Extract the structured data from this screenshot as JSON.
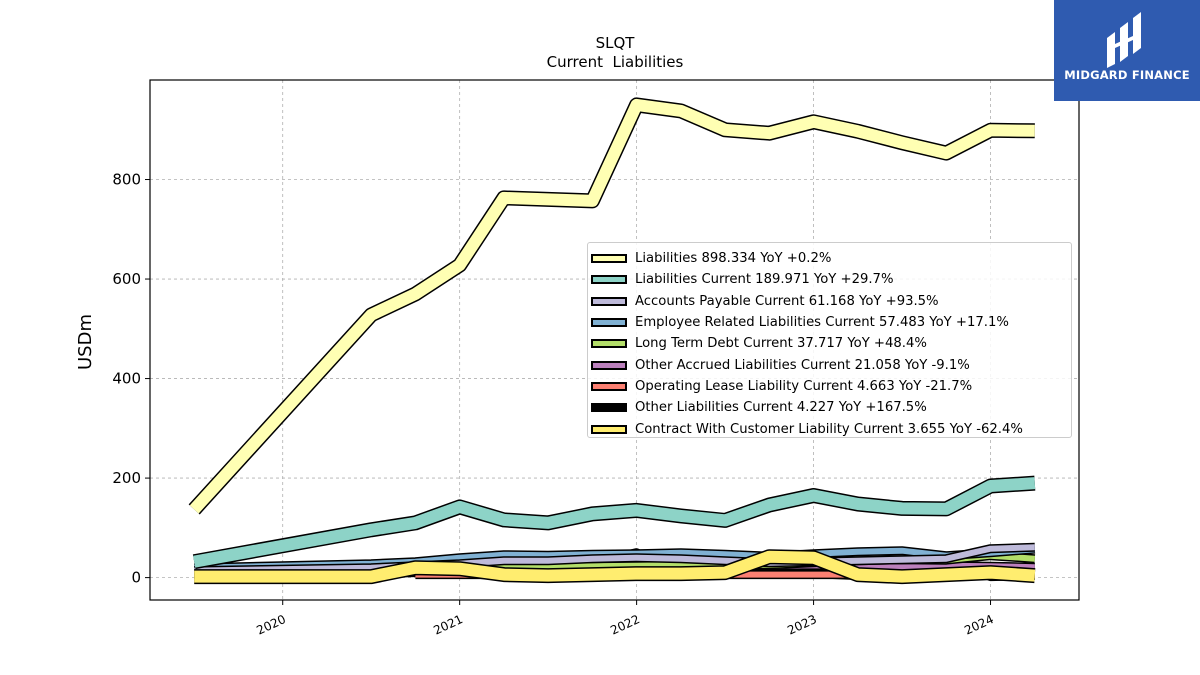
{
  "chart_data": {
    "type": "area",
    "title": "SLQT",
    "subtitle": "Current  Liabilities",
    "ylabel": "USDm",
    "xlabel": "",
    "xlim": [
      2019.25,
      2024.5
    ],
    "ylim": [
      -45,
      1000
    ],
    "x_ticks": [
      2020,
      2021,
      2022,
      2023,
      2024
    ],
    "x_tick_labels": [
      "2020",
      "2021",
      "2022",
      "2023",
      "2024"
    ],
    "y_ticks": [
      0,
      200,
      400,
      600,
      800
    ],
    "y_tick_labels": [
      "0",
      "200",
      "400",
      "600",
      "800"
    ],
    "grid": true,
    "legend_position": "center-right",
    "x": [
      2019.5,
      2020.5,
      2020.75,
      2021.0,
      2021.25,
      2021.5,
      2021.75,
      2022.0,
      2022.25,
      2022.5,
      2022.75,
      2023.0,
      2023.25,
      2023.5,
      2023.75,
      2024.0,
      2024.25
    ],
    "series": [
      {
        "name": "Liabilities",
        "legend": "Liabilities  898.334 YoY +0.2%",
        "color": "#ffffb3",
        "width": 12,
        "values": [
          137,
          528,
          570,
          628,
          763,
          760,
          757,
          950,
          938,
          900,
          893,
          916,
          897,
          874,
          853,
          899,
          898
        ]
      },
      {
        "name": "Liabilities Current",
        "legend": "Liabilities Current  189.971 YoY +29.7%",
        "color": "#8dd3c7",
        "width": 12,
        "values": [
          32,
          96,
          110,
          142,
          116,
          110,
          128,
          135,
          124,
          115,
          146,
          165,
          148,
          139,
          138,
          184,
          190
        ]
      },
      {
        "name": "Accounts Payable Current",
        "legend": "Accounts Payable Current  61.168 YoY +93.5%",
        "color": "#bebada",
        "width": 6,
        "values": [
          14,
          20,
          24,
          28,
          34,
          34,
          38,
          40,
          38,
          34,
          30,
          32,
          34,
          36,
          38,
          58,
          61
        ]
      },
      {
        "name": "Employee Related Liabilities Current",
        "legend": "Employee Related Liabilities Current  57.483 YoY +17.1%",
        "color": "#80b1d3",
        "width": 6,
        "values": [
          20,
          28,
          32,
          40,
          46,
          45,
          47,
          48,
          50,
          47,
          43,
          48,
          52,
          54,
          44,
          50,
          57
        ]
      },
      {
        "name": "Long Term Debt Current",
        "legend": "Long Term Debt Current  37.717 YoY +48.4%",
        "color": "#b3de69",
        "width": 6,
        "values": [
          16,
          18,
          20,
          22,
          25,
          24,
          23,
          24,
          25,
          26,
          26,
          30,
          34,
          36,
          35,
          44,
          38
        ]
      },
      {
        "name": "Other Accrued Liabilities Current",
        "legend": "Other Accrued Liabilities Current  21.058 YoY -9.1%",
        "color": "#bc80bd",
        "width": 6,
        "values": [
          8,
          14,
          16,
          18,
          26,
          22,
          26,
          24,
          40,
          30,
          24,
          25,
          24,
          22,
          24,
          23,
          21
        ]
      },
      {
        "name": "Operating Lease Liability Current",
        "legend": "Operating Lease Liability Current  4.663 YoY -21.7%",
        "color": "#fb8072",
        "width": 6,
        "values": [
          null,
          null,
          6,
          6,
          6,
          6,
          6,
          6,
          6,
          6,
          6,
          6,
          6,
          6,
          6,
          6,
          5
        ]
      },
      {
        "name": "Other Liabilities Current",
        "legend": "Other Liabilities Current  4.227 YoY +167.5%",
        "color": "#000000",
        "width": 6,
        "values": [
          6,
          8,
          10,
          12,
          12,
          8,
          30,
          50,
          4,
          26,
          12,
          8,
          4,
          2,
          40,
          2,
          4
        ]
      },
      {
        "name": "Contract With Customer Liability Current",
        "legend": "Contract With Customer Liability Current  3.655 YoY -62.4%",
        "color": "#ffed6f",
        "width": 12,
        "values": [
          2,
          2,
          20,
          18,
          6,
          4,
          6,
          8,
          8,
          10,
          42,
          40,
          6,
          2,
          6,
          10,
          4
        ]
      }
    ]
  },
  "logo": {
    "text": "MIDGARD FINANCE",
    "background": "#2f5bb0"
  }
}
